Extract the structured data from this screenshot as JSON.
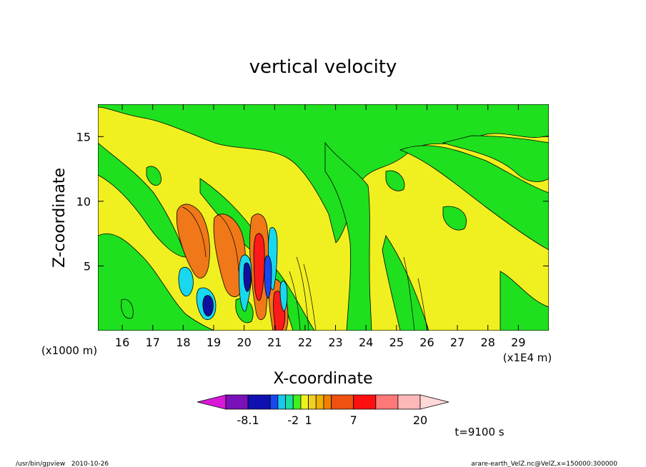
{
  "chart_data": {
    "type": "heatmap",
    "title": "vertical velocity",
    "xlabel": "X-coordinate",
    "ylabel": "Z-coordinate",
    "x_unit_left": "(x1000 m)",
    "x_unit_right": "(x1E4 m)",
    "xlim": [
      15.2,
      30.0
    ],
    "ylim": [
      0.0,
      17.5
    ],
    "x_ticks": [
      "16",
      "17",
      "18",
      "19",
      "20",
      "21",
      "22",
      "23",
      "24",
      "25",
      "26",
      "27",
      "28",
      "29"
    ],
    "y_ticks": [
      "5",
      "10",
      "15"
    ],
    "x_tick_values": [
      16,
      17,
      18,
      19,
      20,
      21,
      22,
      23,
      24,
      25,
      26,
      27,
      28,
      29
    ],
    "y_tick_values": [
      5,
      10,
      15
    ],
    "time_label": "t=9100 s",
    "colorbar": {
      "colors": [
        "#d81ad8",
        "#7a10b8",
        "#1010b0",
        "#1848f0",
        "#18c8f0",
        "#18e0a0",
        "#40f020",
        "#f0f020",
        "#f0d020",
        "#f0b000",
        "#f08000",
        "#f05010",
        "#ff1010",
        "#ff7878",
        "#ffb8b8",
        "#ffd8d8"
      ],
      "labels": [
        "-8.1",
        "-2",
        "1",
        "7",
        "20"
      ],
      "label_positions": [
        1,
        5,
        7,
        11,
        14
      ]
    },
    "features": [
      {
        "x": 18.3,
        "z": 8.0,
        "sign": "positive",
        "level": "orange"
      },
      {
        "x": 19.5,
        "z": 6.5,
        "sign": "positive",
        "level": "orange"
      },
      {
        "x": 20.6,
        "z": 6.0,
        "sign": "positive",
        "level": "orange"
      },
      {
        "x": 18.7,
        "z": 2.0,
        "sign": "negative",
        "level": "blue"
      },
      {
        "x": 20.0,
        "z": 4.2,
        "sign": "negative",
        "level": "navy"
      },
      {
        "x": 20.4,
        "z": 4.5,
        "sign": "positive",
        "level": "red"
      },
      {
        "x": 21.0,
        "z": 2.0,
        "sign": "positive",
        "level": "red"
      }
    ]
  },
  "footer": {
    "left": "/usr/bin/gpview   2010-10-26",
    "right": "arare-earth_VelZ.nc@VelZ,x=150000:300000"
  },
  "colors": {
    "yellow": "#f0f020",
    "green": "#1ee01e",
    "orange": "#f07818",
    "darkorange": "#e06010",
    "red": "#ff1a1a",
    "navy": "#1010a0",
    "blue": "#1848f0",
    "cyan": "#18d8f0"
  }
}
